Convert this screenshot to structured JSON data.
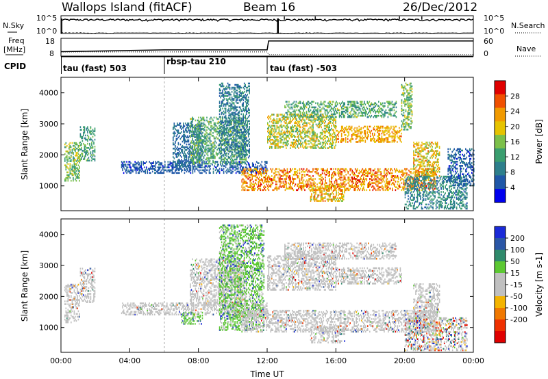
{
  "header": {
    "site": "Wallops Island (fitACF)",
    "beam": "Beam 16",
    "date": "26/Dec/2012"
  },
  "strip_labels": {
    "nsky": "N.Sky",
    "nsky_top": "10^5",
    "nsky_bottom": "10^0",
    "nsearch": "N.Search",
    "nsearch_top": "10^5",
    "nsearch_bottom": "10^0",
    "freq_line1": "Freq",
    "freq_line2": "[MHz]",
    "freq_top": "18",
    "freq_bottom": "8",
    "nave": "Nave",
    "nave_top": "60",
    "nave_bottom": "0",
    "cpid": "CPID",
    "cpid_segments": [
      "tau (fast) 503",
      "rbsp-tau 210",
      "tau (fast) -503"
    ]
  },
  "colors": {
    "power_scale": [
      "#0000ee",
      "#1f57a8",
      "#2d7f8c",
      "#3a9e6f",
      "#7cc04a",
      "#e6c300",
      "#f19a00",
      "#f05000",
      "#e00000"
    ],
    "velocity_scale": [
      "#1a2ad8",
      "#2a56a6",
      "#2f8a6c",
      "#5cc832",
      "#c0c0c0",
      "#c0c0c0",
      "#f4b400",
      "#f07800",
      "#ef3000",
      "#e00000"
    ],
    "ground_scatter": "#c0c0c0"
  },
  "chart_data": [
    {
      "type": "line",
      "title": "Wallops Island (fitACF)",
      "subtitle": "Beam 16",
      "panel": "sky/search noise",
      "xlabel": "",
      "ylabel": "N.Sky",
      "y_right_label": "N.Search",
      "x_range": [
        "00:00",
        "24:00"
      ],
      "y_scale": "log",
      "ylim": [
        1,
        100000
      ],
      "series": [
        {
          "name": "N.Sky",
          "x": [
            "00:00",
            "03:00",
            "06:00",
            "09:00",
            "12:00",
            "15:00",
            "18:00",
            "21:00",
            "24:00"
          ],
          "values": [
            8000,
            9000,
            7000,
            9500,
            8000,
            9000,
            9000,
            8500,
            7000
          ]
        }
      ]
    },
    {
      "type": "line",
      "panel": "frequency / nave",
      "xlabel": "",
      "ylabel": "Freq [MHz]",
      "y_right_label": "Nave",
      "x_range": [
        "00:00",
        "24:00"
      ],
      "ylim": [
        8,
        18
      ],
      "y_right_lim": [
        0,
        60
      ],
      "series": [
        {
          "name": "Freq",
          "x": [
            "00:00",
            "00:10",
            "06:00",
            "12:00",
            "12:05",
            "24:00"
          ],
          "values": [
            10.5,
            10.5,
            11.5,
            11.5,
            16.5,
            16.5
          ]
        },
        {
          "name": "Nave",
          "x": [
            "00:00",
            "12:00",
            "12:05",
            "24:00"
          ],
          "values": [
            14,
            14,
            5,
            5
          ]
        }
      ],
      "cpid": [
        {
          "label": "tau (fast) 503",
          "start": "00:00",
          "end": "06:00"
        },
        {
          "label": "rbsp-tau 210",
          "start": "06:00",
          "end": "12:00"
        },
        {
          "label": "tau (fast) -503",
          "start": "12:00",
          "end": "24:00"
        }
      ]
    },
    {
      "type": "heatmap",
      "panel": "power",
      "xlabel": "",
      "ylabel": "Slant Range [km]",
      "x_ticks": [
        "00:00",
        "04:00",
        "08:00",
        "12:00",
        "16:00",
        "20:00",
        "00:00"
      ],
      "y_ticks": [
        1000,
        2000,
        3000,
        4000
      ],
      "ylim": [
        200,
        4500
      ],
      "colorbar_label": "Power [dB]",
      "colorbar_ticks": [
        4,
        8,
        12,
        16,
        20,
        24,
        28
      ],
      "colorbar_range": [
        0,
        32
      ],
      "regions": [
        {
          "t0": 0.2,
          "t1": 1.1,
          "r0": 1150,
          "r1": 2400,
          "v0": 10,
          "v1": 20
        },
        {
          "t0": 1.1,
          "t1": 2.0,
          "r0": 1800,
          "r1": 2900,
          "v0": 8,
          "v1": 16
        },
        {
          "t0": 3.5,
          "t1": 12.0,
          "r0": 1400,
          "r1": 1800,
          "v0": 3,
          "v1": 8
        },
        {
          "t0": 6.5,
          "t1": 8.2,
          "r0": 1600,
          "r1": 3000,
          "v0": 4,
          "v1": 10
        },
        {
          "t0": 7.5,
          "t1": 10.8,
          "r0": 1700,
          "r1": 3200,
          "v0": 8,
          "v1": 18
        },
        {
          "t0": 9.2,
          "t1": 11.0,
          "r0": 1900,
          "r1": 4300,
          "v0": 5,
          "v1": 12
        },
        {
          "t0": 10.5,
          "t1": 21.8,
          "r0": 850,
          "r1": 1550,
          "v0": 18,
          "v1": 30
        },
        {
          "t0": 12.0,
          "t1": 16.0,
          "r0": 2200,
          "r1": 3300,
          "v0": 12,
          "v1": 24
        },
        {
          "t0": 13.0,
          "t1": 19.5,
          "r0": 3200,
          "r1": 3700,
          "v0": 8,
          "v1": 18
        },
        {
          "t0": 16.0,
          "t1": 19.8,
          "r0": 2400,
          "r1": 2900,
          "v0": 18,
          "v1": 26
        },
        {
          "t0": 19.8,
          "t1": 20.4,
          "r0": 2800,
          "r1": 4300,
          "v0": 10,
          "v1": 20
        },
        {
          "t0": 20.5,
          "t1": 22.0,
          "r0": 1300,
          "r1": 2400,
          "v0": 14,
          "v1": 26
        },
        {
          "t0": 20.0,
          "t1": 23.6,
          "r0": 250,
          "r1": 1300,
          "v0": 6,
          "v1": 14
        },
        {
          "t0": 22.5,
          "t1": 24.0,
          "r0": 1000,
          "r1": 2200,
          "v0": 3,
          "v1": 10
        },
        {
          "t0": 14.5,
          "t1": 16.5,
          "r0": 500,
          "r1": 1000,
          "v0": 16,
          "v1": 26
        }
      ]
    },
    {
      "type": "heatmap",
      "panel": "velocity",
      "xlabel": "Time UT",
      "ylabel": "Slant Range [km]",
      "x_ticks": [
        "00:00",
        "04:00",
        "08:00",
        "12:00",
        "16:00",
        "20:00",
        "00:00"
      ],
      "y_ticks": [
        1000,
        2000,
        3000,
        4000
      ],
      "ylim": [
        200,
        4500
      ],
      "colorbar_label": "Velocity [m s-1]",
      "colorbar_ticks": [
        200,
        100,
        50,
        15,
        -15,
        -50,
        -100,
        -200
      ],
      "colorbar_range": [
        -250,
        250
      ],
      "regions": [
        {
          "t0": 0.2,
          "t1": 1.1,
          "r0": 1150,
          "r1": 2400,
          "kind": "ground"
        },
        {
          "t0": 1.1,
          "t1": 2.0,
          "r0": 1800,
          "r1": 2900,
          "kind": "ground"
        },
        {
          "t0": 3.5,
          "t1": 12.0,
          "r0": 1400,
          "r1": 1800,
          "kind": "ground"
        },
        {
          "t0": 7.0,
          "t1": 8.2,
          "r0": 1100,
          "r1": 1500,
          "kind": "positive"
        },
        {
          "t0": 7.5,
          "t1": 10.8,
          "r0": 1700,
          "r1": 3200,
          "kind": "ground"
        },
        {
          "t0": 9.2,
          "t1": 11.8,
          "r0": 900,
          "r1": 4300,
          "kind": "positive"
        },
        {
          "t0": 10.5,
          "t1": 21.8,
          "r0": 850,
          "r1": 1550,
          "kind": "ground"
        },
        {
          "t0": 12.0,
          "t1": 16.0,
          "r0": 2200,
          "r1": 3300,
          "kind": "ground"
        },
        {
          "t0": 13.0,
          "t1": 19.5,
          "r0": 3200,
          "r1": 3700,
          "kind": "ground"
        },
        {
          "t0": 16.0,
          "t1": 19.8,
          "r0": 2400,
          "r1": 2900,
          "kind": "ground"
        },
        {
          "t0": 20.5,
          "t1": 22.0,
          "r0": 1300,
          "r1": 2400,
          "kind": "ground"
        },
        {
          "t0": 20.0,
          "t1": 23.6,
          "r0": 250,
          "r1": 1300,
          "kind": "mixed"
        },
        {
          "t0": 14.5,
          "t1": 16.5,
          "r0": 500,
          "r1": 1000,
          "kind": "ground"
        }
      ]
    }
  ]
}
